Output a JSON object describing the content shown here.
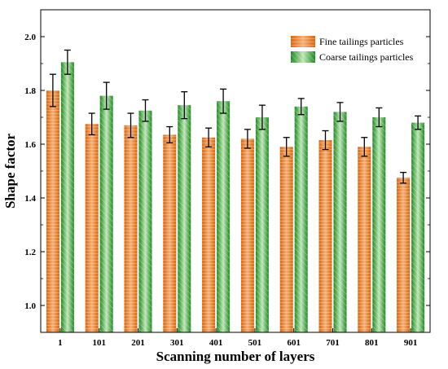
{
  "chart_data": {
    "type": "bar",
    "title": "",
    "xlabel": "Scanning number of layers",
    "ylabel": "Shape factor",
    "categories": [
      "1",
      "101",
      "201",
      "301",
      "401",
      "501",
      "601",
      "701",
      "801",
      "901"
    ],
    "ylim": [
      0.9,
      2.1
    ],
    "yticks": [
      "1.0",
      "1.2",
      "1.4",
      "1.6",
      "1.8",
      "2.0"
    ],
    "legend_position": "top-right",
    "grid": false,
    "series": [
      {
        "name": "Fine tailings particles",
        "color": "#e8761a",
        "values": [
          1.8,
          1.675,
          1.67,
          1.635,
          1.625,
          1.62,
          1.59,
          1.615,
          1.59,
          1.475
        ],
        "errors": [
          0.06,
          0.04,
          0.045,
          0.03,
          0.035,
          0.035,
          0.035,
          0.035,
          0.035,
          0.02
        ]
      },
      {
        "name": "Coarse tailings particles",
        "color": "#2f9a2f",
        "values": [
          1.905,
          1.78,
          1.725,
          1.745,
          1.76,
          1.7,
          1.74,
          1.72,
          1.7,
          1.68
        ],
        "errors": [
          0.045,
          0.05,
          0.04,
          0.05,
          0.045,
          0.045,
          0.03,
          0.035,
          0.035,
          0.025
        ]
      }
    ]
  }
}
